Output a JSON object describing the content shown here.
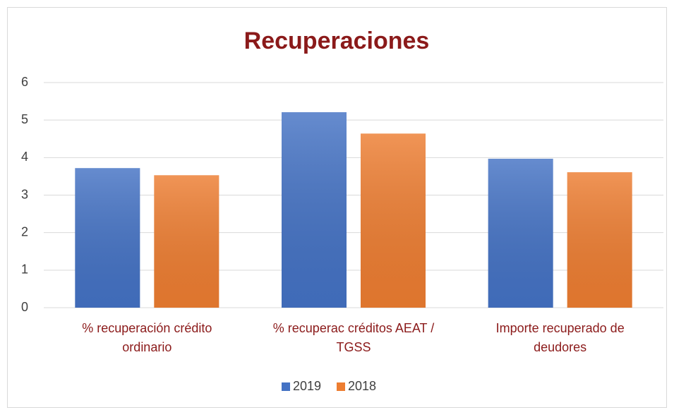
{
  "chart_data": {
    "type": "bar",
    "title": "Recuperaciones",
    "categories": [
      "% recuperación crédito ordinario",
      "% recuperac créditos AEAT / TGSS",
      "Importe recuperado de deudores"
    ],
    "series": [
      {
        "name": "2019",
        "color": "#4472c4",
        "values": [
          3.72,
          5.21,
          3.97
        ]
      },
      {
        "name": "2018",
        "color": "#ed7d31",
        "values": [
          3.53,
          4.64,
          3.61
        ]
      }
    ],
    "ylim": [
      0,
      6
    ],
    "yticks": [
      0,
      1,
      2,
      3,
      4,
      5,
      6
    ],
    "grid": true,
    "legend": "bottom"
  }
}
